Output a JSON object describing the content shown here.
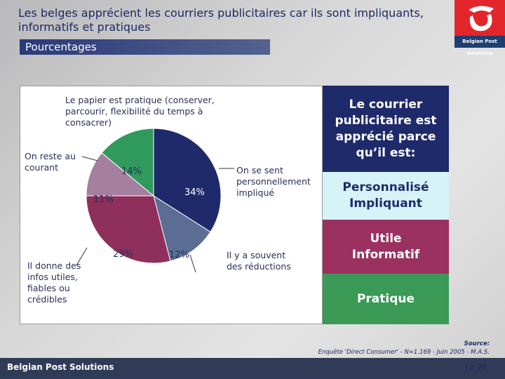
{
  "title": "Les belges apprécient les courriers publicitaires car ils sont impliquants, informatifs et pratiques",
  "subtitle": "Pourcentages",
  "logo_text": "Belgian Post Solutions",
  "chart_data": {
    "type": "pie",
    "title": "",
    "slices": [
      {
        "label": "On se sent personnellement impliqué",
        "value": 34,
        "display": "34%",
        "color": "#1f2a6b"
      },
      {
        "label": "Il y a souvent des réductions",
        "value": 12,
        "display": "12%",
        "color": "#5b6d93"
      },
      {
        "label": "Il donne des infos utiles, fiables ou crédibles",
        "value": 29,
        "display": "29%",
        "color": "#8f2f5c"
      },
      {
        "label": "On reste au courant",
        "value": 11,
        "display": "11%",
        "color": "#a57f9f"
      },
      {
        "label": "Le papier est pratique (conserver, parcourir, flexibilité du temps à consacrer)",
        "value": 14,
        "display": "14%",
        "color": "#2f9a5b"
      }
    ]
  },
  "right_panel": {
    "heading": "Le courrier publicitaire est apprécié parce qu’il est:",
    "b1": "Personnalisé Impliquant",
    "b2": "Utile Informatif",
    "b3": "Pratique"
  },
  "source_label": "Source:",
  "source": "Enquête 'Direct Consumer' - N=1.169 - Juin 2005 - M.A.S.",
  "footer_brand": "Belgian Post Solutions",
  "page": "| p 26"
}
